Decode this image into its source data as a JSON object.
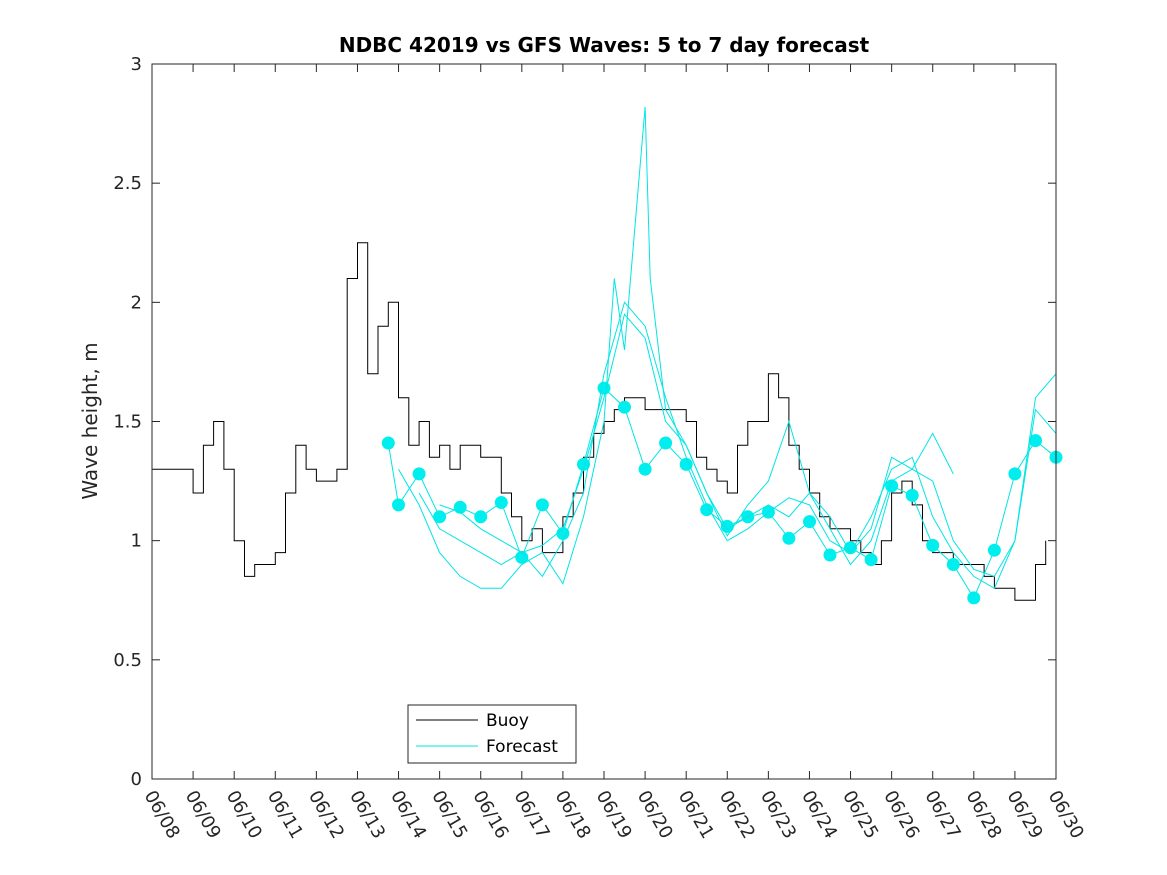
{
  "chart_data": {
    "type": "line",
    "title": "NDBC 42019 vs GFS Waves: 5 to 7 day forecast",
    "xlabel": "",
    "ylabel": "Wave height, m",
    "xlim": [
      "06/08",
      "06/30"
    ],
    "ylim": [
      0,
      3
    ],
    "x_tick_labels": [
      "06/08",
      "06/09",
      "06/10",
      "06/11",
      "06/12",
      "06/13",
      "06/14",
      "06/15",
      "06/16",
      "06/17",
      "06/18",
      "06/19",
      "06/20",
      "06/21",
      "06/22",
      "06/23",
      "06/24",
      "06/25",
      "06/26",
      "06/27",
      "06/28",
      "06/29",
      "06/30"
    ],
    "y_ticks": [
      0,
      0.5,
      1,
      1.5,
      2,
      2.5,
      3
    ],
    "y_tick_labels": [
      "0",
      "0.5",
      "1",
      "1.5",
      "2",
      "2.5",
      "3"
    ],
    "grid": false,
    "legend": {
      "position": "bottom-left",
      "entries": [
        {
          "label": "Buoy",
          "color": "#000000"
        },
        {
          "label": "Forecast",
          "color": "#00eeee"
        }
      ]
    },
    "colors": {
      "buoy": "#000000",
      "forecast": "#00e5e5",
      "marker": "#00eeee"
    },
    "series": [
      {
        "name": "Buoy",
        "x": [
          "06/08 00:00",
          "06/08 12:00",
          "06/09 00:00",
          "06/09 06:00",
          "06/09 12:00",
          "06/09 18:00",
          "06/10 00:00",
          "06/10 06:00",
          "06/10 12:00",
          "06/10 18:00",
          "06/11 00:00",
          "06/11 06:00",
          "06/11 12:00",
          "06/11 18:00",
          "06/12 00:00",
          "06/12 12:00",
          "06/12 18:00",
          "06/13 00:00",
          "06/13 06:00",
          "06/13 12:00",
          "06/13 18:00",
          "06/14 00:00",
          "06/14 06:00",
          "06/14 12:00",
          "06/14 18:00",
          "06/15 00:00",
          "06/15 06:00",
          "06/15 12:00",
          "06/16 00:00",
          "06/16 12:00",
          "06/16 18:00",
          "06/17 00:00",
          "06/17 06:00",
          "06/17 12:00",
          "06/18 00:00",
          "06/18 06:00",
          "06/18 12:00",
          "06/18 18:00",
          "06/19 00:00",
          "06/19 06:00",
          "06/19 12:00",
          "06/20 00:00",
          "06/20 12:00",
          "06/21 00:00",
          "06/21 06:00",
          "06/21 12:00",
          "06/21 18:00",
          "06/22 00:00",
          "06/22 06:00",
          "06/22 12:00",
          "06/23 00:00",
          "06/23 06:00",
          "06/23 12:00",
          "06/23 18:00",
          "06/24 00:00",
          "06/24 06:00",
          "06/24 12:00",
          "06/25 00:00",
          "06/25 06:00",
          "06/25 12:00",
          "06/25 18:00",
          "06/26 00:00",
          "06/26 06:00",
          "06/26 12:00",
          "06/26 18:00",
          "06/27 00:00",
          "06/27 12:00",
          "06/28 00:00",
          "06/28 06:00",
          "06/28 12:00",
          "06/28 18:00",
          "06/29 00:00",
          "06/29 06:00",
          "06/29 12:00",
          "06/29 18:00"
        ],
        "values": [
          1.3,
          1.3,
          1.2,
          1.4,
          1.5,
          1.3,
          1.0,
          0.85,
          0.9,
          0.9,
          0.95,
          1.2,
          1.4,
          1.3,
          1.25,
          1.3,
          2.1,
          2.25,
          1.7,
          1.9,
          2.0,
          1.6,
          1.4,
          1.5,
          1.35,
          1.4,
          1.3,
          1.4,
          1.35,
          1.2,
          1.1,
          1.0,
          1.05,
          0.95,
          1.1,
          1.2,
          1.35,
          1.45,
          1.5,
          1.55,
          1.6,
          1.55,
          1.55,
          1.5,
          1.35,
          1.3,
          1.25,
          1.2,
          1.4,
          1.5,
          1.7,
          1.6,
          1.4,
          1.3,
          1.2,
          1.1,
          1.05,
          1.0,
          0.95,
          0.9,
          1.0,
          1.2,
          1.25,
          1.15,
          1.0,
          0.95,
          0.9,
          0.9,
          0.85,
          0.8,
          0.8,
          0.75,
          0.75,
          0.9,
          1.0
        ]
      },
      {
        "name": "Forecast",
        "x": [
          "06/13 18:00",
          "06/14 00:00",
          "06/14 12:00",
          "06/15 00:00",
          "06/15 12:00",
          "06/16 00:00",
          "06/16 12:00",
          "06/17 00:00",
          "06/17 12:00",
          "06/18 00:00",
          "06/18 12:00",
          "06/19 00:00",
          "06/19 12:00",
          "06/20 00:00",
          "06/20 12:00",
          "06/21 00:00",
          "06/21 12:00",
          "06/22 00:00",
          "06/22 12:00",
          "06/23 00:00",
          "06/23 12:00",
          "06/24 00:00",
          "06/24 12:00",
          "06/25 00:00",
          "06/25 12:00",
          "06/26 00:00",
          "06/26 12:00",
          "06/27 00:00",
          "06/27 12:00",
          "06/28 00:00",
          "06/28 12:00",
          "06/29 00:00",
          "06/29 12:00",
          "06/30 00:00"
        ],
        "values": [
          1.41,
          1.15,
          1.28,
          1.1,
          1.14,
          1.1,
          1.16,
          0.93,
          1.15,
          1.03,
          1.32,
          1.64,
          1.56,
          1.3,
          1.41,
          1.32,
          1.13,
          1.06,
          1.1,
          1.12,
          1.01,
          1.08,
          0.94,
          0.97,
          0.92,
          1.23,
          1.19,
          0.98,
          0.9,
          0.76,
          0.96,
          1.28,
          1.42,
          1.35
        ]
      },
      {
        "name": "",
        "x": [
          "06/14 00:00",
          "06/14 12:00",
          "06/15 00:00",
          "06/15 12:00",
          "06/16 00:00",
          "06/16 12:00",
          "06/17 00:00",
          "06/17 12:00",
          "06/18 00:00",
          "06/18 12:00",
          "06/19 00:00",
          "06/19 06:00",
          "06/19 12:00",
          "06/20 00:00",
          "06/20 03:00",
          "06/20 12:00",
          "06/21 00:00",
          "06/21 12:00",
          "06/22 00:00",
          "06/22 12:00",
          "06/23 00:00",
          "06/23 12:00",
          "06/24 00:00",
          "06/24 12:00",
          "06/25 00:00",
          "06/25 12:00",
          "06/26 00:00",
          "06/26 12:00",
          "06/27 00:00",
          "06/27 12:00"
        ],
        "values": [
          1.3,
          1.15,
          0.95,
          0.85,
          0.8,
          0.8,
          0.9,
          0.95,
          0.82,
          1.1,
          1.5,
          2.1,
          1.8,
          2.82,
          2.1,
          1.55,
          1.4,
          1.2,
          1.05,
          1.1,
          1.15,
          1.1,
          1.2,
          1.1,
          0.95,
          1.05,
          1.35,
          1.3,
          1.45,
          1.28
        ]
      },
      {
        "name": "",
        "x": [
          "06/14 12:00",
          "06/15 00:00",
          "06/15 12:00",
          "06/16 00:00",
          "06/16 12:00",
          "06/17 00:00",
          "06/17 12:00",
          "06/18 00:00",
          "06/18 12:00",
          "06/19 00:00",
          "06/19 12:00",
          "06/20 00:00",
          "06/20 12:00",
          "06/21 00:00",
          "06/21 12:00",
          "06/22 00:00",
          "06/22 12:00",
          "06/23 00:00",
          "06/23 12:00",
          "06/24 00:00",
          "06/24 12:00",
          "06/25 00:00",
          "06/25 12:00",
          "06/26 00:00",
          "06/26 12:00",
          "06/27 00:00",
          "06/27 12:00",
          "06/28 00:00",
          "06/28 12:00",
          "06/29 00:00",
          "06/29 12:00",
          "06/30 00:00"
        ],
        "values": [
          1.2,
          1.05,
          1.0,
          0.95,
          0.9,
          0.95,
          0.85,
          1.0,
          1.2,
          1.7,
          2.0,
          1.9,
          1.6,
          1.35,
          1.15,
          1.0,
          1.05,
          1.12,
          1.18,
          1.15,
          1.0,
          0.95,
          1.1,
          1.3,
          1.35,
          1.1,
          0.95,
          0.85,
          0.8,
          1.0,
          1.55,
          1.45
        ]
      },
      {
        "name": "",
        "x": [
          "06/15 00:00",
          "06/15 12:00",
          "06/16 00:00",
          "06/16 12:00",
          "06/17 00:00",
          "06/17 12:00",
          "06/18 00:00",
          "06/18 12:00",
          "06/19 00:00",
          "06/19 12:00",
          "06/20 00:00",
          "06/20 12:00",
          "06/21 00:00",
          "06/21 12:00",
          "06/22 00:00",
          "06/22 12:00",
          "06/23 00:00",
          "06/23 12:00",
          "06/24 00:00",
          "06/24 12:00",
          "06/25 00:00",
          "06/25 12:00",
          "06/26 00:00",
          "06/26 12:00",
          "06/27 00:00",
          "06/27 12:00",
          "06/28 00:00",
          "06/28 12:00",
          "06/29 00:00",
          "06/29 12:00",
          "06/30 00:00"
        ],
        "values": [
          1.15,
          1.12,
          1.05,
          1.0,
          0.95,
          0.98,
          1.05,
          1.3,
          1.6,
          1.95,
          1.85,
          1.5,
          1.4,
          1.2,
          1.02,
          1.15,
          1.25,
          1.5,
          1.2,
          1.05,
          0.9,
          1.0,
          1.25,
          1.3,
          1.25,
          1.0,
          0.88,
          0.85,
          1.0,
          1.6,
          1.7
        ]
      }
    ]
  }
}
